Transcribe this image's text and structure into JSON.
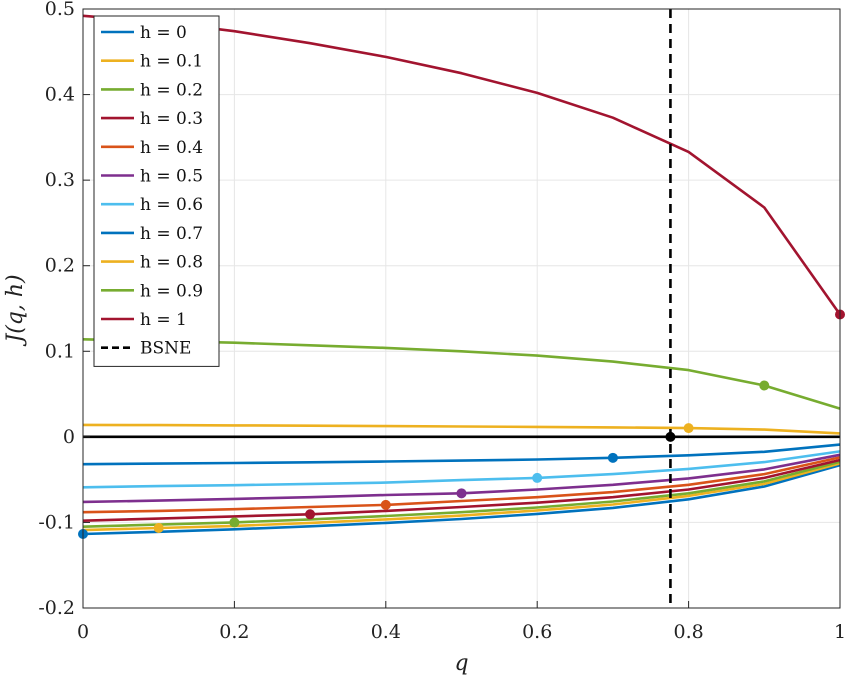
{
  "chart_data": {
    "type": "line",
    "title": "",
    "xlabel": "q",
    "ylabel": "J(q, h)",
    "xlim": [
      0,
      1
    ],
    "ylim": [
      -0.2,
      0.5
    ],
    "xticks": [
      0,
      0.2,
      0.4,
      0.6,
      0.8,
      1
    ],
    "xtick_labels": [
      "0",
      "0.2",
      "0.4",
      "0.6",
      "0.8",
      "1"
    ],
    "yticks": [
      -0.2,
      -0.1,
      0,
      0.1,
      0.2,
      0.3,
      0.4,
      0.5
    ],
    "ytick_labels": [
      "-0.2",
      "-0.1",
      "0",
      "0.1",
      "0.2",
      "0.3",
      "0.4",
      "0.5"
    ],
    "grid": true,
    "legend_position": "top-left",
    "x": [
      0,
      0.1,
      0.2,
      0.3,
      0.4,
      0.5,
      0.6,
      0.7,
      0.8,
      0.9,
      1.0
    ],
    "series": [
      {
        "name": "h = 0",
        "color": "#0072BD",
        "values": [
          -0.1135,
          -0.111,
          -0.108,
          -0.1045,
          -0.1005,
          -0.096,
          -0.09,
          -0.083,
          -0.073,
          -0.058,
          -0.033
        ],
        "marker": {
          "x": 0,
          "y": -0.1135
        }
      },
      {
        "name": "h = 0.1",
        "color": "#EDB120",
        "values": [
          -0.109,
          -0.1065,
          -0.104,
          -0.1005,
          -0.0965,
          -0.092,
          -0.086,
          -0.079,
          -0.069,
          -0.055,
          -0.031
        ],
        "marker": {
          "x": 0.1,
          "y": -0.1065
        }
      },
      {
        "name": "h = 0.2",
        "color": "#77AC30",
        "values": [
          -0.105,
          -0.1025,
          -0.1,
          -0.0965,
          -0.0925,
          -0.088,
          -0.0825,
          -0.0755,
          -0.066,
          -0.052,
          -0.029
        ],
        "marker": {
          "x": 0.2,
          "y": -0.1
        }
      },
      {
        "name": "h = 0.3",
        "color": "#A2142F",
        "values": [
          -0.098,
          -0.0955,
          -0.093,
          -0.0905,
          -0.0865,
          -0.082,
          -0.077,
          -0.0705,
          -0.0615,
          -0.048,
          -0.027
        ],
        "marker": {
          "x": 0.3,
          "y": -0.0905
        }
      },
      {
        "name": "h = 0.4",
        "color": "#D95319",
        "values": [
          -0.088,
          -0.0865,
          -0.0845,
          -0.082,
          -0.0795,
          -0.075,
          -0.0705,
          -0.0645,
          -0.056,
          -0.0435,
          -0.024
        ],
        "marker": {
          "x": 0.4,
          "y": -0.0795
        }
      },
      {
        "name": "h = 0.5",
        "color": "#7E2F8E",
        "values": [
          -0.076,
          -0.0745,
          -0.0725,
          -0.0705,
          -0.068,
          -0.066,
          -0.0615,
          -0.056,
          -0.0485,
          -0.038,
          -0.021
        ],
        "marker": {
          "x": 0.5,
          "y": -0.066
        }
      },
      {
        "name": "h = 0.6",
        "color": "#4DBEEE",
        "values": [
          -0.059,
          -0.0575,
          -0.0565,
          -0.055,
          -0.0535,
          -0.0505,
          -0.048,
          -0.0435,
          -0.0375,
          -0.0295,
          -0.017
        ],
        "marker": {
          "x": 0.6,
          "y": -0.048
        }
      },
      {
        "name": "h = 0.7",
        "color": "#0072BD",
        "values": [
          -0.032,
          -0.0313,
          -0.0305,
          -0.0297,
          -0.0288,
          -0.0278,
          -0.0265,
          -0.0245,
          -0.0215,
          -0.0175,
          -0.009
        ],
        "marker": {
          "x": 0.7,
          "y": -0.0245
        }
      },
      {
        "name": "h = 0.8",
        "color": "#EDB120",
        "values": [
          0.014,
          0.0137,
          0.0134,
          0.013,
          0.0126,
          0.0121,
          0.0116,
          0.011,
          0.0102,
          0.0085,
          0.004
        ],
        "marker": {
          "x": 0.8,
          "y": 0.0102
        }
      },
      {
        "name": "h = 0.9",
        "color": "#77AC30",
        "values": [
          0.114,
          0.112,
          0.11,
          0.107,
          0.104,
          0.1,
          0.095,
          0.088,
          0.078,
          0.06,
          0.033
        ],
        "marker": {
          "x": 0.9,
          "y": 0.06
        }
      },
      {
        "name": "h = 1",
        "color": "#A2142F",
        "values": [
          0.492,
          0.485,
          0.474,
          0.46,
          0.444,
          0.425,
          0.402,
          0.373,
          0.333,
          0.268,
          0.143
        ],
        "marker": {
          "x": 1.0,
          "y": 0.143
        }
      }
    ],
    "reference_lines": [
      {
        "name": "zero-line",
        "orientation": "horizontal",
        "value": 0,
        "color": "#000000",
        "style": "solid"
      }
    ],
    "bsne": {
      "name": "BSNE",
      "x": 0.776,
      "color": "#000000",
      "style": "dashed",
      "marker": {
        "x": 0.776,
        "y": 0
      }
    }
  }
}
